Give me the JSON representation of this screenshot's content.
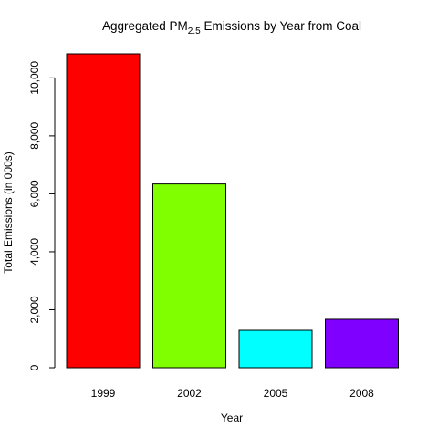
{
  "chart_data": {
    "type": "bar",
    "title": {
      "main": "Aggregated PM",
      "subscript": "2.5",
      "rest": " Emissions by Year from Coal"
    },
    "xlabel": "Year",
    "ylabel": "Total Emissions (in 000s)",
    "categories": [
      "1999",
      "2002",
      "2005",
      "2008"
    ],
    "values": [
      10830,
      6340,
      1290,
      1670
    ],
    "colors": [
      "#ff0000",
      "#80ff00",
      "#00ffff",
      "#8000ff"
    ],
    "ylim": [
      0,
      10830
    ],
    "yticks": [
      0,
      2000,
      4000,
      6000,
      8000,
      10000
    ],
    "ytick_labels": [
      "0",
      "2,000",
      "4,000",
      "6,000",
      "8,000",
      "10,000"
    ],
    "grid": false,
    "legend": "none"
  }
}
